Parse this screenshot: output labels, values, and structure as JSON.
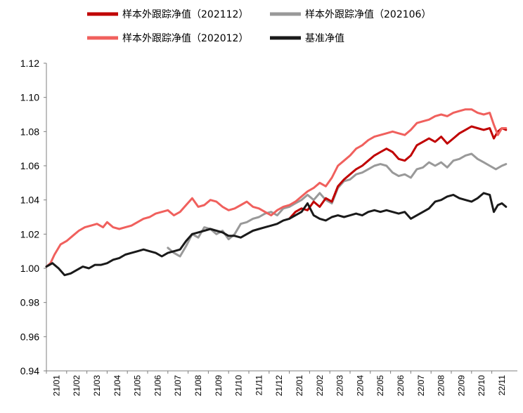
{
  "chart_data": {
    "type": "line",
    "title": "",
    "xlabel": "",
    "ylabel": "",
    "ylim": [
      0.94,
      1.12
    ],
    "y_ticks": [
      "0.94",
      "0.96",
      "0.98",
      "1.00",
      "1.02",
      "1.04",
      "1.06",
      "1.08",
      "1.10",
      "1.12"
    ],
    "x_ticks": [
      "21/01",
      "21/02",
      "21/03",
      "21/04",
      "21/05",
      "21/06",
      "21/07",
      "21/08",
      "21/09",
      "21/10",
      "21/11",
      "21/12",
      "22/01",
      "22/02",
      "22/03",
      "22/04",
      "22/05",
      "22/06",
      "22/07",
      "22/08",
      "22/09",
      "22/10",
      "22/11"
    ],
    "grid": false,
    "legend": "top",
    "series": [
      {
        "name": "样本外跟踪净值（202112）",
        "color": "#c00000",
        "points": [
          [
            12.0,
            1.029
          ],
          [
            12.3,
            1.033
          ],
          [
            12.6,
            1.035
          ],
          [
            12.9,
            1.034
          ],
          [
            13.2,
            1.039
          ],
          [
            13.5,
            1.036
          ],
          [
            13.8,
            1.041
          ],
          [
            14.1,
            1.039
          ],
          [
            14.4,
            1.048
          ],
          [
            14.7,
            1.052
          ],
          [
            15.0,
            1.055
          ],
          [
            15.3,
            1.058
          ],
          [
            15.6,
            1.06
          ],
          [
            15.9,
            1.063
          ],
          [
            16.2,
            1.066
          ],
          [
            16.5,
            1.068
          ],
          [
            16.8,
            1.07
          ],
          [
            17.1,
            1.068
          ],
          [
            17.4,
            1.064
          ],
          [
            17.7,
            1.063
          ],
          [
            18.0,
            1.066
          ],
          [
            18.3,
            1.072
          ],
          [
            18.6,
            1.074
          ],
          [
            18.9,
            1.076
          ],
          [
            19.2,
            1.074
          ],
          [
            19.5,
            1.077
          ],
          [
            19.8,
            1.073
          ],
          [
            20.1,
            1.076
          ],
          [
            20.4,
            1.079
          ],
          [
            20.7,
            1.081
          ],
          [
            21.0,
            1.083
          ],
          [
            21.3,
            1.082
          ],
          [
            21.6,
            1.081
          ],
          [
            21.9,
            1.082
          ],
          [
            22.1,
            1.076
          ],
          [
            22.3,
            1.08
          ],
          [
            22.5,
            1.082
          ],
          [
            22.7,
            1.081
          ]
        ]
      },
      {
        "name": "样本外跟踪净值（202106）",
        "color": "#999999",
        "points": [
          [
            6.0,
            1.012
          ],
          [
            6.3,
            1.009
          ],
          [
            6.6,
            1.007
          ],
          [
            6.9,
            1.013
          ],
          [
            7.2,
            1.02
          ],
          [
            7.5,
            1.018
          ],
          [
            7.8,
            1.024
          ],
          [
            8.1,
            1.023
          ],
          [
            8.4,
            1.02
          ],
          [
            8.7,
            1.022
          ],
          [
            9.0,
            1.017
          ],
          [
            9.3,
            1.02
          ],
          [
            9.6,
            1.026
          ],
          [
            9.9,
            1.027
          ],
          [
            10.2,
            1.029
          ],
          [
            10.5,
            1.03
          ],
          [
            10.8,
            1.032
          ],
          [
            11.1,
            1.033
          ],
          [
            11.4,
            1.031
          ],
          [
            11.7,
            1.035
          ],
          [
            12.0,
            1.036
          ],
          [
            12.3,
            1.038
          ],
          [
            12.6,
            1.04
          ],
          [
            12.9,
            1.043
          ],
          [
            13.2,
            1.04
          ],
          [
            13.5,
            1.044
          ],
          [
            13.8,
            1.04
          ],
          [
            14.1,
            1.038
          ],
          [
            14.4,
            1.047
          ],
          [
            14.7,
            1.051
          ],
          [
            15.0,
            1.052
          ],
          [
            15.3,
            1.055
          ],
          [
            15.6,
            1.056
          ],
          [
            15.9,
            1.058
          ],
          [
            16.2,
            1.06
          ],
          [
            16.5,
            1.061
          ],
          [
            16.8,
            1.06
          ],
          [
            17.1,
            1.056
          ],
          [
            17.4,
            1.054
          ],
          [
            17.7,
            1.055
          ],
          [
            18.0,
            1.053
          ],
          [
            18.3,
            1.058
          ],
          [
            18.6,
            1.059
          ],
          [
            18.9,
            1.062
          ],
          [
            19.2,
            1.06
          ],
          [
            19.5,
            1.062
          ],
          [
            19.8,
            1.059
          ],
          [
            20.1,
            1.063
          ],
          [
            20.4,
            1.064
          ],
          [
            20.7,
            1.066
          ],
          [
            21.0,
            1.067
          ],
          [
            21.3,
            1.064
          ],
          [
            21.6,
            1.062
          ],
          [
            21.9,
            1.06
          ],
          [
            22.2,
            1.058
          ],
          [
            22.5,
            1.06
          ],
          [
            22.7,
            1.061
          ]
        ]
      },
      {
        "name": "样本外跟踪净值（202012）",
        "color": "#f0605d",
        "points": [
          [
            0.0,
            1.001
          ],
          [
            0.2,
            1.003
          ],
          [
            0.4,
            1.008
          ],
          [
            0.7,
            1.014
          ],
          [
            1.0,
            1.016
          ],
          [
            1.3,
            1.019
          ],
          [
            1.6,
            1.022
          ],
          [
            1.9,
            1.024
          ],
          [
            2.2,
            1.025
          ],
          [
            2.5,
            1.026
          ],
          [
            2.8,
            1.024
          ],
          [
            3.0,
            1.027
          ],
          [
            3.3,
            1.024
          ],
          [
            3.6,
            1.023
          ],
          [
            3.9,
            1.024
          ],
          [
            4.2,
            1.025
          ],
          [
            4.5,
            1.027
          ],
          [
            4.8,
            1.029
          ],
          [
            5.1,
            1.03
          ],
          [
            5.4,
            1.032
          ],
          [
            5.7,
            1.033
          ],
          [
            6.0,
            1.034
          ],
          [
            6.3,
            1.031
          ],
          [
            6.6,
            1.033
          ],
          [
            6.9,
            1.037
          ],
          [
            7.2,
            1.041
          ],
          [
            7.5,
            1.036
          ],
          [
            7.8,
            1.037
          ],
          [
            8.1,
            1.04
          ],
          [
            8.4,
            1.039
          ],
          [
            8.7,
            1.036
          ],
          [
            9.0,
            1.034
          ],
          [
            9.3,
            1.035
          ],
          [
            9.6,
            1.037
          ],
          [
            9.9,
            1.039
          ],
          [
            10.2,
            1.036
          ],
          [
            10.5,
            1.035
          ],
          [
            10.8,
            1.033
          ],
          [
            11.1,
            1.031
          ],
          [
            11.4,
            1.034
          ],
          [
            11.7,
            1.036
          ],
          [
            12.0,
            1.037
          ],
          [
            12.3,
            1.039
          ],
          [
            12.6,
            1.042
          ],
          [
            12.9,
            1.045
          ],
          [
            13.2,
            1.047
          ],
          [
            13.5,
            1.05
          ],
          [
            13.8,
            1.048
          ],
          [
            14.1,
            1.053
          ],
          [
            14.4,
            1.06
          ],
          [
            14.7,
            1.063
          ],
          [
            15.0,
            1.066
          ],
          [
            15.3,
            1.07
          ],
          [
            15.6,
            1.072
          ],
          [
            15.9,
            1.075
          ],
          [
            16.2,
            1.077
          ],
          [
            16.5,
            1.078
          ],
          [
            16.8,
            1.079
          ],
          [
            17.1,
            1.08
          ],
          [
            17.4,
            1.079
          ],
          [
            17.7,
            1.078
          ],
          [
            18.0,
            1.081
          ],
          [
            18.3,
            1.085
          ],
          [
            18.6,
            1.086
          ],
          [
            18.9,
            1.087
          ],
          [
            19.2,
            1.089
          ],
          [
            19.5,
            1.09
          ],
          [
            19.8,
            1.089
          ],
          [
            20.1,
            1.091
          ],
          [
            20.4,
            1.092
          ],
          [
            20.7,
            1.093
          ],
          [
            21.0,
            1.093
          ],
          [
            21.3,
            1.091
          ],
          [
            21.6,
            1.09
          ],
          [
            21.9,
            1.091
          ],
          [
            22.1,
            1.084
          ],
          [
            22.3,
            1.078
          ],
          [
            22.5,
            1.082
          ],
          [
            22.7,
            1.082
          ]
        ]
      },
      {
        "name": "基准净值",
        "color": "#1a1a1a",
        "points": [
          [
            0.0,
            1.001
          ],
          [
            0.3,
            1.003
          ],
          [
            0.6,
            1.0
          ],
          [
            0.9,
            0.996
          ],
          [
            1.2,
            0.997
          ],
          [
            1.5,
            0.999
          ],
          [
            1.8,
            1.001
          ],
          [
            2.1,
            1.0
          ],
          [
            2.4,
            1.002
          ],
          [
            2.7,
            1.002
          ],
          [
            3.0,
            1.003
          ],
          [
            3.3,
            1.005
          ],
          [
            3.6,
            1.006
          ],
          [
            3.9,
            1.008
          ],
          [
            4.2,
            1.009
          ],
          [
            4.5,
            1.01
          ],
          [
            4.8,
            1.011
          ],
          [
            5.1,
            1.01
          ],
          [
            5.4,
            1.009
          ],
          [
            5.7,
            1.007
          ],
          [
            6.0,
            1.009
          ],
          [
            6.3,
            1.01
          ],
          [
            6.6,
            1.011
          ],
          [
            6.9,
            1.016
          ],
          [
            7.2,
            1.02
          ],
          [
            7.5,
            1.021
          ],
          [
            7.8,
            1.022
          ],
          [
            8.1,
            1.023
          ],
          [
            8.4,
            1.022
          ],
          [
            8.7,
            1.021
          ],
          [
            9.0,
            1.019
          ],
          [
            9.3,
            1.019
          ],
          [
            9.6,
            1.018
          ],
          [
            9.9,
            1.02
          ],
          [
            10.2,
            1.022
          ],
          [
            10.5,
            1.023
          ],
          [
            10.8,
            1.024
          ],
          [
            11.1,
            1.025
          ],
          [
            11.4,
            1.026
          ],
          [
            11.7,
            1.028
          ],
          [
            12.0,
            1.029
          ],
          [
            12.3,
            1.031
          ],
          [
            12.6,
            1.033
          ],
          [
            12.9,
            1.038
          ],
          [
            13.2,
            1.031
          ],
          [
            13.5,
            1.029
          ],
          [
            13.8,
            1.028
          ],
          [
            14.1,
            1.03
          ],
          [
            14.4,
            1.031
          ],
          [
            14.7,
            1.03
          ],
          [
            15.0,
            1.031
          ],
          [
            15.3,
            1.032
          ],
          [
            15.6,
            1.031
          ],
          [
            15.9,
            1.033
          ],
          [
            16.2,
            1.034
          ],
          [
            16.5,
            1.033
          ],
          [
            16.8,
            1.034
          ],
          [
            17.1,
            1.033
          ],
          [
            17.4,
            1.032
          ],
          [
            17.7,
            1.033
          ],
          [
            18.0,
            1.029
          ],
          [
            18.3,
            1.031
          ],
          [
            18.6,
            1.033
          ],
          [
            18.9,
            1.035
          ],
          [
            19.2,
            1.039
          ],
          [
            19.5,
            1.04
          ],
          [
            19.8,
            1.042
          ],
          [
            20.1,
            1.043
          ],
          [
            20.4,
            1.041
          ],
          [
            20.7,
            1.04
          ],
          [
            21.0,
            1.039
          ],
          [
            21.3,
            1.041
          ],
          [
            21.6,
            1.044
          ],
          [
            21.9,
            1.043
          ],
          [
            22.1,
            1.033
          ],
          [
            22.3,
            1.037
          ],
          [
            22.5,
            1.038
          ],
          [
            22.7,
            1.036
          ]
        ]
      }
    ]
  }
}
